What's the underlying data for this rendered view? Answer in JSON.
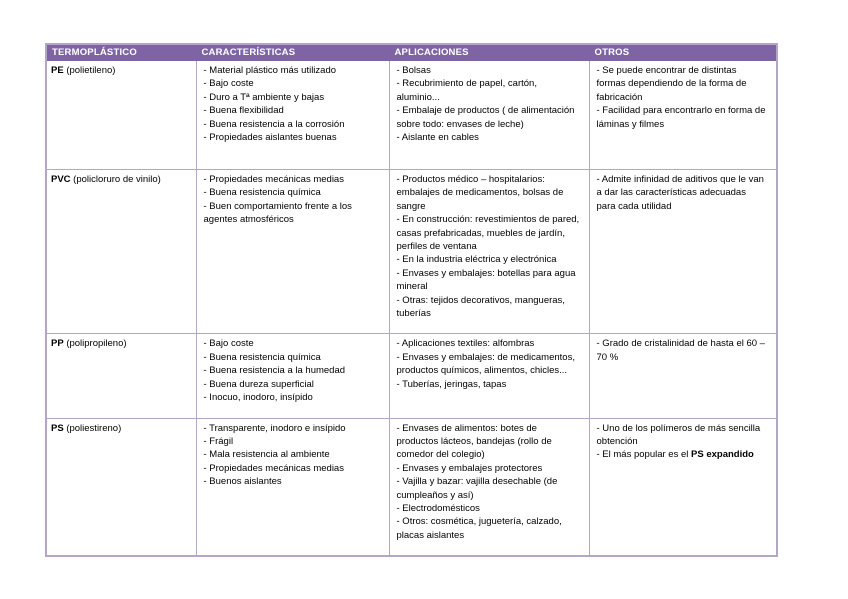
{
  "page": {
    "background_color": "#ffffff"
  },
  "table": {
    "accent_color": "#7e64a4",
    "border_color": "#b4a6c8",
    "header_text_color": "#ffffff",
    "headers": [
      {
        "id": "termoplastico",
        "label": "TERMOPLÁSTICO"
      },
      {
        "id": "caracteristicas",
        "label": "CARACTERÍSTICAS"
      },
      {
        "id": "aplicaciones",
        "label": "APLICACIONES"
      },
      {
        "id": "otros",
        "label": "OTROS"
      }
    ],
    "rows": [
      {
        "id": "pe",
        "term": "PE",
        "term_detail": " (polietileno)",
        "caracteristicas": [
          "- Material plástico más utilizado",
          "- Bajo coste",
          "- Duro a Tª ambiente y bajas",
          "- Buena flexibilidad",
          "- Buena resistencia a la corrosión",
          "- Propiedades aislantes buenas"
        ],
        "aplicaciones": [
          "- Bolsas",
          "- Recubrimiento de papel, cartón, aluminio...",
          "- Embalaje de productos ( de alimentación sobre todo: envases de leche)",
          "- Aislante en cables"
        ],
        "otros": [
          "- Se puede encontrar de distintas formas dependiendo de la forma de fabricación",
          "- Facilidad para encontrarlo en forma de láminas y filmes"
        ]
      },
      {
        "id": "pvc",
        "term": "PVC",
        "term_detail": " (policloruro de vinilo)",
        "caracteristicas": [
          "- Propiedades mecánicas medias",
          "- Buena resistencia química",
          "- Buen comportamiento frente a los agentes atmosféricos"
        ],
        "aplicaciones": [
          "- Productos médico – hospitalarios: embalajes de medicamentos, bolsas de sangre",
          "- En construcción: revestimientos  de pared, casas prefabricadas, muebles de jardín, perfiles de ventana",
          "- En la industria eléctrica y electrónica",
          "- Envases y embalajes: botellas para agua mineral",
          "- Otras: tejidos decorativos, mangueras, tuberías"
        ],
        "otros": [
          "- Admite infinidad de aditivos que le van a dar las características adecuadas para cada utilidad"
        ]
      },
      {
        "id": "pp",
        "term": "PP",
        "term_detail": " (polipropileno)",
        "caracteristicas": [
          "- Bajo coste",
          "- Buena resistencia química",
          "- Buena resistencia a la humedad",
          "- Buena dureza superficial",
          "- Inocuo, inodoro, insípido"
        ],
        "aplicaciones": [
          "- Aplicaciones textiles: alfombras",
          "- Envases y embalajes: de medicamentos, productos químicos, alimentos, chicles...",
          "- Tuberías, jeringas, tapas"
        ],
        "otros": [
          "- Grado de cristalinidad de hasta el 60 – 70 %"
        ]
      },
      {
        "id": "ps",
        "term": "PS",
        "term_detail": " (poliestireno)",
        "caracteristicas": [
          "- Transparente, inodoro e insípido",
          "- Frágil",
          "- Mala resistencia al ambiente",
          "- Propiedades mecánicas medias",
          "- Buenos aislantes"
        ],
        "aplicaciones": [
          "- Envases de alimentos: botes de productos lácteos, bandejas (rollo de comedor del colegio)",
          "- Envases y embalajes protectores",
          "- Vajilla y bazar: vajilla desechable (de cumpleaños y así)",
          "- Electrodomésticos",
          "- Otros: cosmética, juguetería, calzado, placas aislantes"
        ],
        "otros": [
          "- Uno de los polímeros de más sencilla obtención",
          "- El más popular es el **PS expandido**"
        ]
      }
    ]
  }
}
